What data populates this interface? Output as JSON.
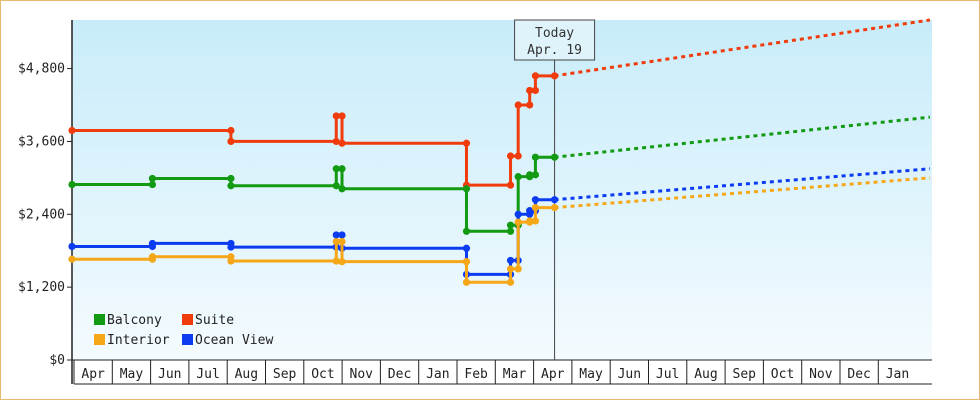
{
  "chart_data": {
    "type": "line",
    "title": "",
    "xlabel": "",
    "ylabel": "",
    "ylim": [
      0,
      5600
    ],
    "y_ticks": [
      "$0",
      "$1,200",
      "$2,400",
      "$3,600",
      "$4,800"
    ],
    "y_tick_values": [
      0,
      1200,
      2400,
      3600,
      4800
    ],
    "x_month_labels": [
      "Apr",
      "May",
      "Jun",
      "Jul",
      "Aug",
      "Sep",
      "Oct",
      "Nov",
      "Dec",
      "Jan",
      "Feb",
      "Mar",
      "Apr",
      "May",
      "Jun",
      "Jul",
      "Aug",
      "Sep",
      "Oct",
      "Nov",
      "Dec",
      "Jan"
    ],
    "today": {
      "line1": "Today",
      "line2": "Apr. 19",
      "x": 12.6
    },
    "legend": {
      "placement": "bottom-left"
    },
    "grid": false,
    "series": [
      {
        "name": "Suite",
        "color": "#f03c0c",
        "history": [
          [
            0,
            3780
          ],
          [
            4.15,
            3780
          ],
          [
            4.15,
            3600
          ],
          [
            6.9,
            3600
          ],
          [
            6.9,
            4020
          ],
          [
            7.05,
            4020
          ],
          [
            7.05,
            3570
          ],
          [
            10.3,
            3570
          ],
          [
            10.3,
            2880
          ],
          [
            11.45,
            2880
          ],
          [
            11.45,
            3360
          ],
          [
            11.65,
            3360
          ],
          [
            11.65,
            4200
          ],
          [
            11.95,
            4200
          ],
          [
            11.95,
            4440
          ],
          [
            12.1,
            4440
          ],
          [
            12.1,
            4680
          ],
          [
            12.6,
            4680
          ]
        ],
        "markers": [
          [
            0,
            3780
          ],
          [
            4.15,
            3780
          ],
          [
            4.15,
            3600
          ],
          [
            6.9,
            3600
          ],
          [
            6.9,
            4020
          ],
          [
            7.05,
            4020
          ],
          [
            7.05,
            3570
          ],
          [
            10.3,
            3570
          ],
          [
            10.3,
            2880
          ],
          [
            11.45,
            2880
          ],
          [
            11.45,
            3360
          ],
          [
            11.65,
            3360
          ],
          [
            11.65,
            4200
          ],
          [
            11.95,
            4200
          ],
          [
            11.95,
            4440
          ],
          [
            12.1,
            4440
          ],
          [
            12.1,
            4680
          ],
          [
            12.6,
            4680
          ]
        ],
        "forecast": [
          [
            12.6,
            4680
          ],
          [
            22.4,
            5600
          ]
        ]
      },
      {
        "name": "Balcony",
        "color": "#129a12",
        "history": [
          [
            0,
            2890
          ],
          [
            2.1,
            2890
          ],
          [
            2.1,
            2990
          ],
          [
            4.15,
            2990
          ],
          [
            4.15,
            2870
          ],
          [
            6.9,
            2870
          ],
          [
            6.9,
            3150
          ],
          [
            7.05,
            3150
          ],
          [
            7.05,
            2820
          ],
          [
            10.3,
            2820
          ],
          [
            10.3,
            2120
          ],
          [
            11.45,
            2120
          ],
          [
            11.45,
            2220
          ],
          [
            11.65,
            2220
          ],
          [
            11.65,
            3020
          ],
          [
            11.95,
            3020
          ],
          [
            11.95,
            3050
          ],
          [
            12.1,
            3050
          ],
          [
            12.1,
            3340
          ],
          [
            12.6,
            3340
          ]
        ],
        "markers": [
          [
            0,
            2890
          ],
          [
            2.1,
            2890
          ],
          [
            2.1,
            2990
          ],
          [
            4.15,
            2990
          ],
          [
            4.15,
            2870
          ],
          [
            6.9,
            2870
          ],
          [
            6.9,
            3150
          ],
          [
            7.05,
            3150
          ],
          [
            7.05,
            2820
          ],
          [
            10.3,
            2820
          ],
          [
            10.3,
            2120
          ],
          [
            11.45,
            2120
          ],
          [
            11.45,
            2220
          ],
          [
            11.65,
            2220
          ],
          [
            11.65,
            3020
          ],
          [
            11.95,
            3020
          ],
          [
            11.95,
            3050
          ],
          [
            12.1,
            3050
          ],
          [
            12.1,
            3340
          ],
          [
            12.6,
            3340
          ]
        ],
        "forecast": [
          [
            12.6,
            3340
          ],
          [
            22.4,
            4000
          ]
        ]
      },
      {
        "name": "Ocean View",
        "color": "#0c3cf0",
        "history": [
          [
            0,
            1870
          ],
          [
            2.1,
            1870
          ],
          [
            2.1,
            1920
          ],
          [
            4.15,
            1920
          ],
          [
            4.15,
            1860
          ],
          [
            6.9,
            1860
          ],
          [
            6.9,
            2060
          ],
          [
            7.05,
            2060
          ],
          [
            7.05,
            1840
          ],
          [
            10.3,
            1840
          ],
          [
            10.3,
            1410
          ],
          [
            11.45,
            1410
          ],
          [
            11.45,
            1640
          ],
          [
            11.65,
            1640
          ],
          [
            11.65,
            2400
          ],
          [
            11.95,
            2400
          ],
          [
            11.95,
            2460
          ],
          [
            12.1,
            2460
          ],
          [
            12.1,
            2640
          ],
          [
            12.6,
            2640
          ]
        ],
        "markers": [
          [
            0,
            1870
          ],
          [
            2.1,
            1870
          ],
          [
            2.1,
            1920
          ],
          [
            4.15,
            1920
          ],
          [
            4.15,
            1860
          ],
          [
            6.9,
            1860
          ],
          [
            6.9,
            2060
          ],
          [
            7.05,
            2060
          ],
          [
            7.05,
            1840
          ],
          [
            10.3,
            1840
          ],
          [
            10.3,
            1410
          ],
          [
            11.45,
            1410
          ],
          [
            11.45,
            1640
          ],
          [
            11.65,
            1640
          ],
          [
            11.65,
            2400
          ],
          [
            11.95,
            2400
          ],
          [
            11.95,
            2460
          ],
          [
            12.1,
            2460
          ],
          [
            12.1,
            2640
          ],
          [
            12.6,
            2640
          ]
        ],
        "forecast": [
          [
            12.6,
            2640
          ],
          [
            22.4,
            3150
          ]
        ]
      },
      {
        "name": "Interior",
        "color": "#f5a718",
        "history": [
          [
            0,
            1660
          ],
          [
            2.1,
            1660
          ],
          [
            2.1,
            1700
          ],
          [
            4.15,
            1700
          ],
          [
            4.15,
            1630
          ],
          [
            6.9,
            1630
          ],
          [
            6.9,
            1950
          ],
          [
            7.05,
            1950
          ],
          [
            7.05,
            1620
          ],
          [
            10.3,
            1620
          ],
          [
            10.3,
            1280
          ],
          [
            11.45,
            1280
          ],
          [
            11.45,
            1500
          ],
          [
            11.65,
            1500
          ],
          [
            11.65,
            2270
          ],
          [
            11.95,
            2270
          ],
          [
            11.95,
            2290
          ],
          [
            12.1,
            2290
          ],
          [
            12.1,
            2510
          ],
          [
            12.6,
            2510
          ]
        ],
        "markers": [
          [
            0,
            1660
          ],
          [
            2.1,
            1660
          ],
          [
            2.1,
            1700
          ],
          [
            4.15,
            1700
          ],
          [
            4.15,
            1630
          ],
          [
            6.9,
            1630
          ],
          [
            6.9,
            1950
          ],
          [
            7.05,
            1950
          ],
          [
            7.05,
            1620
          ],
          [
            10.3,
            1620
          ],
          [
            10.3,
            1280
          ],
          [
            11.45,
            1280
          ],
          [
            11.45,
            1500
          ],
          [
            11.65,
            1500
          ],
          [
            11.65,
            2270
          ],
          [
            11.95,
            2270
          ],
          [
            11.95,
            2290
          ],
          [
            12.1,
            2290
          ],
          [
            12.1,
            2510
          ],
          [
            12.6,
            2510
          ]
        ],
        "forecast": [
          [
            12.6,
            2510
          ],
          [
            22.4,
            3000
          ]
        ]
      }
    ],
    "legend_order": [
      "Balcony",
      "Suite",
      "Interior",
      "Ocean View"
    ]
  }
}
